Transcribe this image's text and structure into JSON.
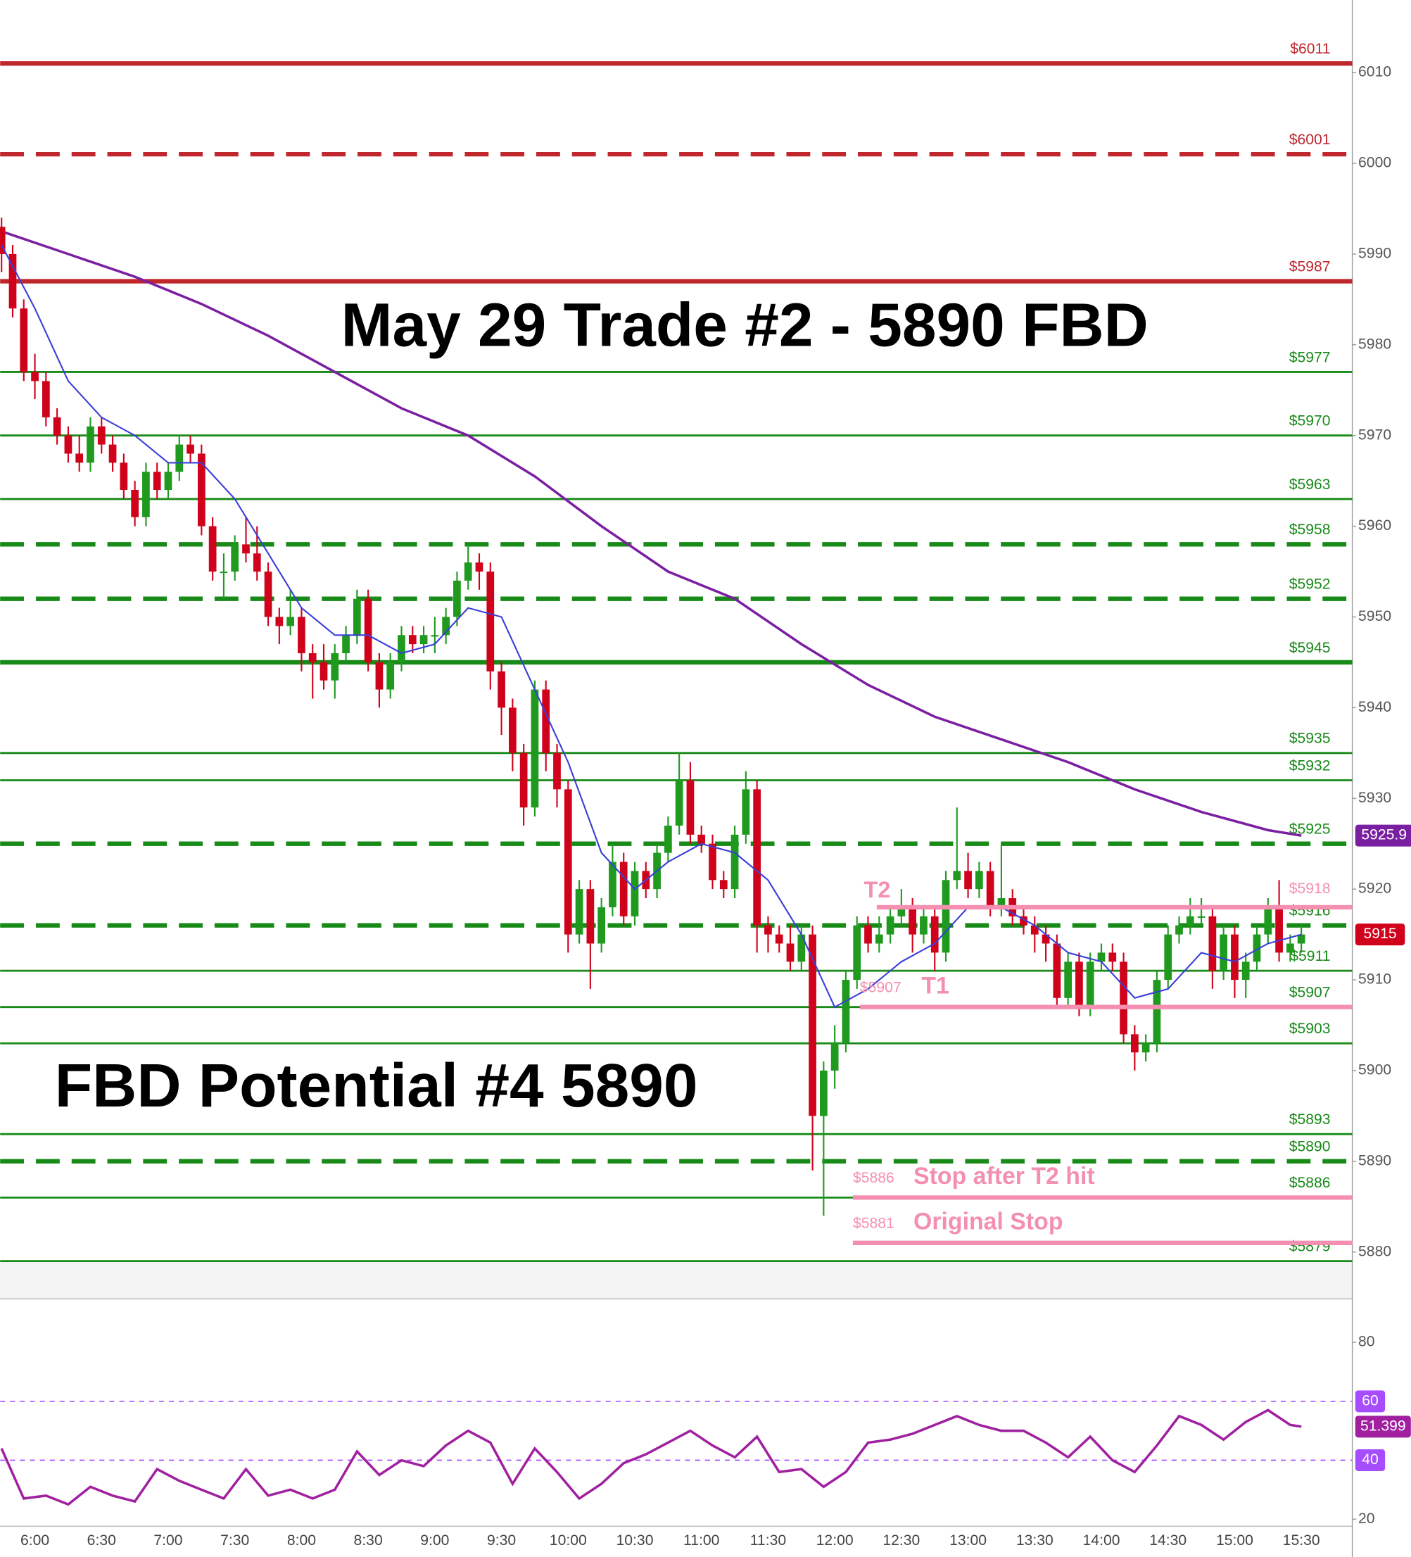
{
  "chart_data": [
    {
      "type": "candlestick",
      "annotations": [
        "May 29 Trade #2 - 5890 FBD",
        "FBD Potential #4 5890"
      ],
      "categories": [
        null,
        null,
        null,
        "6:00",
        null,
        null,
        null,
        null,
        null,
        "6:30",
        null,
        null,
        null,
        null,
        null,
        "7:00",
        null,
        null,
        null,
        null,
        null,
        "7:30",
        null,
        null,
        null,
        null,
        null,
        "8:00",
        null,
        null,
        null,
        null,
        null,
        "8:30",
        null,
        null,
        null,
        null,
        null,
        "9:00",
        null,
        null,
        null,
        null,
        null,
        "9:30",
        null,
        null,
        null,
        null,
        null,
        "10:00",
        null,
        null,
        null,
        null,
        null,
        "10:30",
        null,
        null,
        null,
        null,
        null,
        "11:00",
        null,
        null,
        null,
        null,
        null,
        "11:30",
        null,
        null,
        null,
        null,
        null,
        "12:00",
        null,
        null,
        null,
        null,
        null,
        "12:30",
        null,
        null,
        null,
        null,
        null,
        "13:00",
        null,
        null,
        null,
        null,
        null,
        "13:30",
        null,
        null,
        null,
        null,
        null,
        "14:00",
        null,
        null,
        null,
        null,
        null,
        "14:30",
        null,
        null,
        null,
        null,
        null,
        "15:00",
        null,
        null,
        null,
        null,
        null,
        "15:30"
      ],
      "ohlc": [
        [
          5993,
          5994,
          5988,
          5990
        ],
        [
          5990,
          5991,
          5983,
          5984
        ],
        [
          5984,
          5985,
          5976,
          5977
        ],
        [
          5977,
          5979,
          5974,
          5976
        ],
        [
          5976,
          5977,
          5971,
          5972
        ],
        [
          5972,
          5973,
          5969,
          5970
        ],
        [
          5970,
          5971,
          5967,
          5968
        ],
        [
          5968,
          5970,
          5966,
          5967
        ],
        [
          5967,
          5972,
          5966,
          5971
        ],
        [
          5971,
          5972,
          5968,
          5969
        ],
        [
          5969,
          5970,
          5966,
          5967
        ],
        [
          5967,
          5968,
          5963,
          5964
        ],
        [
          5964,
          5965,
          5960,
          5961
        ],
        [
          5961,
          5967,
          5960,
          5966
        ],
        [
          5966,
          5967,
          5963,
          5964
        ],
        [
          5964,
          5967,
          5963,
          5966
        ],
        [
          5966,
          5970,
          5965,
          5969
        ],
        [
          5969,
          5970,
          5967,
          5968
        ],
        [
          5968,
          5969,
          5959,
          5960
        ],
        [
          5960,
          5961,
          5954,
          5955
        ],
        [
          5955,
          5957,
          5952,
          5955
        ],
        [
          5955,
          5959,
          5954,
          5958
        ],
        [
          5958,
          5961,
          5956,
          5957
        ],
        [
          5957,
          5960,
          5954,
          5955
        ],
        [
          5955,
          5956,
          5949,
          5950
        ],
        [
          5950,
          5951,
          5947,
          5949
        ],
        [
          5949,
          5953,
          5948,
          5950
        ],
        [
          5950,
          5951,
          5944,
          5946
        ],
        [
          5946,
          5947,
          5941,
          5945
        ],
        [
          5945,
          5947,
          5942,
          5943
        ],
        [
          5943,
          5947,
          5941,
          5946
        ],
        [
          5946,
          5949,
          5945,
          5948
        ],
        [
          5948,
          5953,
          5947,
          5952
        ],
        [
          5952,
          5953,
          5944,
          5945
        ],
        [
          5945,
          5946,
          5940,
          5942
        ],
        [
          5942,
          5946,
          5941,
          5945
        ],
        [
          5945,
          5949,
          5944,
          5948
        ],
        [
          5948,
          5949,
          5946,
          5947
        ],
        [
          5947,
          5949,
          5946,
          5948
        ],
        [
          5948,
          5950,
          5946,
          5948
        ],
        [
          5948,
          5951,
          5947,
          5950
        ],
        [
          5950,
          5955,
          5949,
          5954
        ],
        [
          5954,
          5958,
          5953,
          5956
        ],
        [
          5956,
          5957,
          5953,
          5955
        ],
        [
          5955,
          5956,
          5942,
          5944
        ],
        [
          5944,
          5945,
          5937,
          5940
        ],
        [
          5940,
          5941,
          5933,
          5935
        ],
        [
          5935,
          5936,
          5927,
          5929
        ],
        [
          5929,
          5943,
          5928,
          5942
        ],
        [
          5942,
          5943,
          5933,
          5935
        ],
        [
          5935,
          5936,
          5929,
          5931
        ],
        [
          5931,
          5932,
          5913,
          5915
        ],
        [
          5915,
          5921,
          5914,
          5920
        ],
        [
          5920,
          5921,
          5909,
          5914
        ],
        [
          5914,
          5919,
          5913,
          5918
        ],
        [
          5918,
          5925,
          5917,
          5923
        ],
        [
          5923,
          5924,
          5916,
          5917
        ],
        [
          5917,
          5923,
          5916,
          5922
        ],
        [
          5922,
          5923,
          5919,
          5920
        ],
        [
          5920,
          5925,
          5919,
          5924
        ],
        [
          5924,
          5928,
          5923,
          5927
        ],
        [
          5927,
          5935,
          5926,
          5932
        ],
        [
          5932,
          5934,
          5925,
          5926
        ],
        [
          5926,
          5927,
          5924,
          5925
        ],
        [
          5925,
          5926,
          5920,
          5921
        ],
        [
          5921,
          5922,
          5919,
          5920
        ],
        [
          5920,
          5927,
          5919,
          5926
        ],
        [
          5926,
          5933,
          5925,
          5931
        ],
        [
          5931,
          5932,
          5913,
          5916
        ],
        [
          5916,
          5917,
          5913,
          5915
        ],
        [
          5915,
          5916,
          5913,
          5914
        ],
        [
          5914,
          5916,
          5911,
          5912
        ],
        [
          5912,
          5916,
          5911,
          5915
        ],
        [
          5915,
          5916,
          5889,
          5895
        ],
        [
          5895,
          5901,
          5884,
          5900
        ],
        [
          5900,
          5905,
          5898,
          5903
        ],
        [
          5903,
          5911,
          5902,
          5910
        ],
        [
          5910,
          5917,
          5909,
          5916
        ],
        [
          5916,
          5917,
          5913,
          5914
        ],
        [
          5914,
          5917,
          5913,
          5915
        ],
        [
          5915,
          5918,
          5914,
          5917
        ],
        [
          5917,
          5920,
          5916,
          5918
        ],
        [
          5918,
          5919,
          5913,
          5915
        ],
        [
          5915,
          5918,
          5914,
          5917
        ],
        [
          5917,
          5918,
          5911,
          5913
        ],
        [
          5913,
          5922,
          5912,
          5921
        ],
        [
          5921,
          5929,
          5920,
          5922
        ],
        [
          5922,
          5924,
          5919,
          5920
        ],
        [
          5920,
          5923,
          5919,
          5922
        ],
        [
          5922,
          5923,
          5917,
          5918
        ],
        [
          5918,
          5925,
          5917,
          5919
        ],
        [
          5919,
          5920,
          5916,
          5917
        ],
        [
          5917,
          5918,
          5915,
          5916
        ],
        [
          5916,
          5917,
          5913,
          5915
        ],
        [
          5915,
          5916,
          5912,
          5914
        ],
        [
          5914,
          5915,
          5907,
          5908
        ],
        [
          5908,
          5913,
          5907,
          5912
        ],
        [
          5912,
          5913,
          5906,
          5907
        ],
        [
          5907,
          5913,
          5906,
          5912
        ],
        [
          5912,
          5914,
          5911,
          5913
        ],
        [
          5913,
          5914,
          5911,
          5912
        ],
        [
          5912,
          5913,
          5903,
          5904
        ],
        [
          5904,
          5905,
          5900,
          5902
        ],
        [
          5902,
          5904,
          5901,
          5903
        ],
        [
          5903,
          5911,
          5902,
          5910
        ],
        [
          5910,
          5916,
          5909,
          5915
        ],
        [
          5915,
          5917,
          5914,
          5916
        ],
        [
          5916,
          5919,
          5915,
          5917
        ],
        [
          5917,
          5919,
          5916,
          5917
        ],
        [
          5917,
          5918,
          5909,
          5911
        ],
        [
          5911,
          5916,
          5910,
          5915
        ],
        [
          5915,
          5916,
          5908,
          5910
        ],
        [
          5910,
          5913,
          5908,
          5912
        ],
        [
          5912,
          5916,
          5911,
          5915
        ],
        [
          5915,
          5919,
          5914,
          5918
        ],
        [
          5918,
          5921,
          5912,
          5913
        ],
        [
          5913,
          5915,
          5912,
          5914
        ],
        [
          5914,
          5916,
          5913,
          5915
        ]
      ],
      "up_color": "#1f9a1f",
      "down_color": "#d0021b",
      "ylim": [
        5879,
        6018
      ],
      "yticks": [
        5880,
        5890,
        5900,
        5910,
        5920,
        5930,
        5940,
        5950,
        5960,
        5970,
        5980,
        5990,
        6000,
        6010
      ],
      "lines": [
        {
          "color": "#7b1fa2",
          "x": [
            0,
            6,
            12,
            18,
            24,
            30,
            36,
            42,
            48,
            54,
            60,
            66,
            72,
            78,
            84,
            90,
            96,
            102,
            108,
            114,
            117
          ],
          "values": [
            5992.5,
            5990,
            5987.5,
            5984.5,
            5981,
            5977,
            5973,
            5970,
            5965.5,
            5960,
            5955,
            5952,
            5947,
            5942.5,
            5939,
            5936.5,
            5934,
            5931,
            5928.5,
            5926.5,
            5925.9
          ]
        },
        {
          "color": "#3a3fd8",
          "x": [
            0,
            3,
            6,
            9,
            12,
            15,
            18,
            21,
            24,
            27,
            30,
            33,
            36,
            39,
            42,
            45,
            48,
            51,
            54,
            57,
            60,
            63,
            66,
            69,
            72,
            75,
            78,
            81,
            84,
            87,
            90,
            93,
            96,
            99,
            102,
            105,
            108,
            111,
            114,
            117
          ],
          "values": [
            5991,
            5984,
            5976,
            5972,
            5970,
            5967,
            5967,
            5963,
            5957,
            5951,
            5948,
            5948,
            5946,
            5947,
            5951,
            5950,
            5942,
            5934,
            5924,
            5920,
            5923,
            5925,
            5924,
            5921,
            5915,
            5907,
            5909,
            5912,
            5914,
            5918,
            5918,
            5916,
            5913,
            5912,
            5908,
            5909,
            5913,
            5912,
            5914,
            5915
          ]
        }
      ],
      "levels": [
        {
          "value": 6011,
          "label": "$6011",
          "color": "#c0272d",
          "style": "thick"
        },
        {
          "value": 6001,
          "label": "$6001",
          "color": "#c0272d",
          "style": "dashed"
        },
        {
          "value": 5987,
          "label": "$5987",
          "color": "#c0272d",
          "style": "thick"
        },
        {
          "value": 5977,
          "label": "$5977",
          "color": "#178a17",
          "style": "thin"
        },
        {
          "value": 5970,
          "label": "$5970",
          "color": "#178a17",
          "style": "thin"
        },
        {
          "value": 5963,
          "label": "$5963",
          "color": "#178a17",
          "style": "thin"
        },
        {
          "value": 5958,
          "label": "$5958",
          "color": "#178a17",
          "style": "dashed"
        },
        {
          "value": 5952,
          "label": "$5952",
          "color": "#178a17",
          "style": "dashed"
        },
        {
          "value": 5945,
          "label": "$5945",
          "color": "#178a17",
          "style": "thick"
        },
        {
          "value": 5935,
          "label": "$5935",
          "color": "#178a17",
          "style": "thin"
        },
        {
          "value": 5932,
          "label": "$5932",
          "color": "#178a17",
          "style": "thin"
        },
        {
          "value": 5925,
          "label": "$5925",
          "color": "#178a17",
          "style": "dashed"
        },
        {
          "value": 5916,
          "label": "$5916",
          "color": "#178a17",
          "style": "dashed"
        },
        {
          "value": 5911,
          "label": "$5911",
          "color": "#178a17",
          "style": "thin"
        },
        {
          "value": 5907,
          "label": "$5907",
          "color": "#178a17",
          "style": "thin"
        },
        {
          "value": 5903,
          "label": "$5903",
          "color": "#178a17",
          "style": "thin"
        },
        {
          "value": 5893,
          "label": "$5893",
          "color": "#178a17",
          "style": "thin"
        },
        {
          "value": 5890,
          "label": "$5890",
          "color": "#178a17",
          "style": "dashed"
        },
        {
          "value": 5886,
          "label": "$5886",
          "color": "#178a17",
          "style": "thin"
        },
        {
          "value": 5879,
          "label": "$5879",
          "color": "#178a17",
          "style": "thin"
        }
      ],
      "targets": [
        {
          "value": 5918,
          "label": "$5918",
          "text": "T2"
        },
        {
          "value": 5907,
          "label": "$5907",
          "text": "T1"
        },
        {
          "value": 5886,
          "label": "$5886",
          "text": "Stop after T2 hit"
        },
        {
          "value": 5881,
          "label": "$5881",
          "text": "Original Stop"
        }
      ],
      "target_color": "#f48fb1"
    },
    {
      "type": "line",
      "x": [
        0,
        2,
        4,
        6,
        8,
        10,
        12,
        14,
        16,
        18,
        20,
        22,
        24,
        26,
        28,
        30,
        32,
        34,
        36,
        38,
        40,
        42,
        44,
        46,
        48,
        50,
        52,
        54,
        56,
        58,
        60,
        62,
        64,
        66,
        68,
        70,
        72,
        74,
        76,
        78,
        80,
        82,
        84,
        86,
        88,
        90,
        92,
        94,
        96,
        98,
        100,
        102,
        104,
        106,
        108,
        110,
        112,
        114,
        116,
        117
      ],
      "values": [
        44,
        27,
        28,
        25,
        31,
        28,
        26,
        37,
        33,
        30,
        27,
        37,
        28,
        30,
        27,
        30,
        43,
        35,
        40,
        38,
        45,
        50,
        46,
        32,
        44,
        36,
        27,
        32,
        39,
        42,
        46,
        50,
        45,
        41,
        48,
        36,
        37,
        31,
        36,
        46,
        47,
        49,
        52,
        55,
        52,
        50,
        50,
        46,
        41,
        48,
        40,
        36,
        45,
        55,
        52,
        47,
        53,
        57,
        52,
        51.399
      ],
      "color": "#a020a0",
      "ylim": [
        17.6,
        94.8
      ],
      "yticks": [
        20,
        80
      ],
      "bands": [
        40,
        60
      ],
      "band_color": "#a64dff"
    }
  ]
}
